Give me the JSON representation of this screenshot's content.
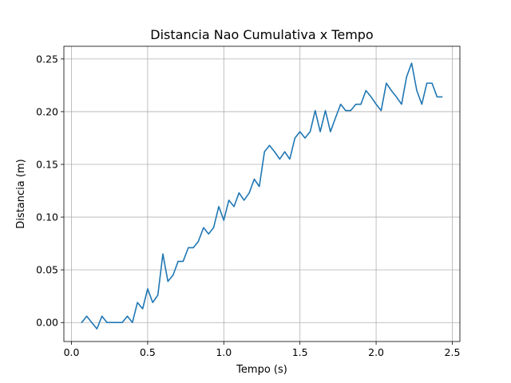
{
  "chart_data": {
    "type": "line",
    "title": "Distancia Nao Cumulativa x Tempo",
    "xlabel": "Tempo (s)",
    "ylabel": "Distancia (m)",
    "xlim": [
      -0.05,
      2.55
    ],
    "ylim": [
      -0.018,
      0.262
    ],
    "xticks": [
      0.0,
      0.5,
      1.0,
      1.5,
      2.0,
      2.5
    ],
    "xtick_labels": [
      "0.0",
      "0.5",
      "1.0",
      "1.5",
      "2.0",
      "2.5"
    ],
    "yticks": [
      0.0,
      0.05,
      0.1,
      0.15,
      0.2,
      0.25
    ],
    "ytick_labels": [
      "0.00",
      "0.05",
      "0.10",
      "0.15",
      "0.20",
      "0.25"
    ],
    "grid": true,
    "color": "#1f77b4",
    "series": [
      {
        "x": [
          0.067,
          0.1,
          0.133,
          0.167,
          0.2,
          0.233,
          0.267,
          0.3,
          0.333,
          0.367,
          0.4,
          0.433,
          0.467,
          0.5,
          0.533,
          0.567,
          0.6,
          0.633,
          0.667,
          0.7,
          0.733,
          0.767,
          0.8,
          0.833,
          0.867,
          0.9,
          0.933,
          0.967,
          1.0,
          1.033,
          1.067,
          1.1,
          1.133,
          1.167,
          1.2,
          1.233,
          1.267,
          1.3,
          1.333,
          1.367,
          1.4,
          1.433,
          1.467,
          1.5,
          1.533,
          1.567,
          1.6,
          1.633,
          1.667,
          1.7,
          1.733,
          1.767,
          1.8,
          1.833,
          1.867,
          1.9,
          1.933,
          1.967,
          2.0,
          2.033,
          2.067,
          2.1,
          2.133,
          2.167,
          2.2,
          2.233,
          2.267,
          2.3,
          2.333,
          2.367,
          2.4,
          2.433
        ],
        "y": [
          0.0,
          0.006,
          0.0,
          -0.006,
          0.006,
          0.0,
          0.0,
          0.0,
          0.0,
          0.006,
          0.0,
          0.019,
          0.013,
          0.032,
          0.019,
          0.026,
          0.065,
          0.039,
          0.045,
          0.058,
          0.058,
          0.071,
          0.071,
          0.077,
          0.09,
          0.084,
          0.09,
          0.11,
          0.097,
          0.116,
          0.11,
          0.123,
          0.116,
          0.123,
          0.136,
          0.129,
          0.162,
          0.168,
          0.162,
          0.155,
          0.162,
          0.155,
          0.175,
          0.181,
          0.175,
          0.181,
          0.201,
          0.181,
          0.201,
          0.181,
          0.194,
          0.207,
          0.201,
          0.201,
          0.207,
          0.207,
          0.22,
          0.214,
          0.207,
          0.201,
          0.227,
          0.22,
          0.214,
          0.207,
          0.233,
          0.246,
          0.22,
          0.207,
          0.227,
          0.227,
          0.214,
          0.214
        ]
      }
    ]
  }
}
